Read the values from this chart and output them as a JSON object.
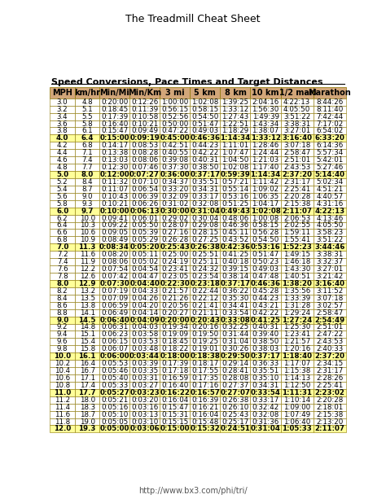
{
  "title": "The Treadmill Cheat Sheet",
  "subtitle": "Speed Conversions, Pace Times and Target Distances",
  "url": "http://www.bx3.com/phi/tri/",
  "headers": [
    "MPH",
    "km/hr",
    "Min/Mi",
    "Min/Km",
    "3 mi",
    "5 km",
    "8 km",
    "10 km",
    "1/2 mar.",
    "Marathon"
  ],
  "rows": [
    [
      "3.0",
      "4.8",
      "0:20:00",
      "0:12:26",
      "1:00:00",
      "1:02:08",
      "1:39:25",
      "2:04:16",
      "4:22:13",
      "8:44:26"
    ],
    [
      "3.2",
      "5.1",
      "0:18:45",
      "0:11:39",
      "0:56:15",
      "0:58:15",
      "1:33:12",
      "1:56:30",
      "4:05:50",
      "8:11:40"
    ],
    [
      "3.4",
      "5.5",
      "0:17:39",
      "0:10:58",
      "0:52:56",
      "0:54:50",
      "1:27:43",
      "1:49:39",
      "3:51:22",
      "7:42:44"
    ],
    [
      "3.6",
      "5.8",
      "0:16:40",
      "0:10:21",
      "0:50:00",
      "0:51:47",
      "1:22:51",
      "1:43:34",
      "3:38:31",
      "7:17:02"
    ],
    [
      "3.8",
      "6.1",
      "0:15:47",
      "0:09:49",
      "0:47:22",
      "0:49:03",
      "1:18:29",
      "1:38:07",
      "3:27:01",
      "6:54:02"
    ],
    [
      "4.0",
      "6.4",
      "0:15:00",
      "0:09:19",
      "0:45:00",
      "0:46:36",
      "1:14:34",
      "1:33:12",
      "3:16:40",
      "6:33:20"
    ],
    [
      "4.2",
      "6.8",
      "0:14:17",
      "0:08:53",
      "0:42:51",
      "0:44:23",
      "1:11:01",
      "1:28:46",
      "3:07:18",
      "6:14:36"
    ],
    [
      "4.4",
      "7.1",
      "0:13:38",
      "0:08:28",
      "0:40:55",
      "0:42:22",
      "1:07:47",
      "1:24:44",
      "2:58:47",
      "5:57:34"
    ],
    [
      "4.6",
      "7.4",
      "0:13:03",
      "0:08:06",
      "0:39:08",
      "0:40:31",
      "1:04:50",
      "1:21:03",
      "2:51:01",
      "5:42:01"
    ],
    [
      "4.8",
      "7.7",
      "0:12:30",
      "0:07:46",
      "0:37:30",
      "0:38:50",
      "1:02:08",
      "1:17:40",
      "2:43:53",
      "5:27:46"
    ],
    [
      "5.0",
      "8.0",
      "0:12:00",
      "0:07:27",
      "0:36:00",
      "0:37:17",
      "0:59:39",
      "1:14:34",
      "2:37:20",
      "5:14:40"
    ],
    [
      "5.2",
      "8.4",
      "0:11:32",
      "0:07:10",
      "0:34:37",
      "0:35:51",
      "0:57:21",
      "1:11:42",
      "2:31:17",
      "5:02:34"
    ],
    [
      "5.4",
      "8.7",
      "0:11:07",
      "0:06:54",
      "0:33:20",
      "0:34:31",
      "0:55:14",
      "1:09:02",
      "2:25:41",
      "4:51:21"
    ],
    [
      "5.6",
      "9.0",
      "0:10:43",
      "0:06:39",
      "0:32:09",
      "0:33:17",
      "0:53:16",
      "1:06:35",
      "2:20:28",
      "4:40:57"
    ],
    [
      "5.8",
      "9.3",
      "0:10:21",
      "0:06:26",
      "0:31:02",
      "0:32:08",
      "0:51:25",
      "1:04:17",
      "2:15:38",
      "4:31:16"
    ],
    [
      "6.0",
      "9.7",
      "0:10:00",
      "0:06:13",
      "0:30:00",
      "0:31:04",
      "0:49:43",
      "1:02:08",
      "2:11:07",
      "4:22:13"
    ],
    [
      "6.2",
      "10.0",
      "0:09:41",
      "0:06:01",
      "0:29:02",
      "0:30:04",
      "0:48:06",
      "1:00:08",
      "2:06:53",
      "4:13:46"
    ],
    [
      "6.4",
      "10.3",
      "0:09:22",
      "0:05:50",
      "0:28:07",
      "0:29:08",
      "0:46:36",
      "0:58:15",
      "2:02:55",
      "4:05:50"
    ],
    [
      "6.6",
      "10.6",
      "0:09:05",
      "0:05:39",
      "0:27:16",
      "0:28:15",
      "0:45:11",
      "0:56:28",
      "1:59:11",
      "3:58:23"
    ],
    [
      "6.8",
      "10.9",
      "0:08:49",
      "0:05:29",
      "0:26:28",
      "0:27:25",
      "0:43:52",
      "0:54:50",
      "1:55:41",
      "3:51:22"
    ],
    [
      "7.0",
      "11.3",
      "0:08:34",
      "0:05:20",
      "0:25:43",
      "0:26:38",
      "0:42:36",
      "0:53:16",
      "1:52:23",
      "3:44:46"
    ],
    [
      "7.2",
      "11.6",
      "0:08:20",
      "0:05:11",
      "0:25:00",
      "0:25:51",
      "0:41:25",
      "0:51:47",
      "1:49:15",
      "3:38:31"
    ],
    [
      "7.4",
      "11.9",
      "0:08:06",
      "0:05:02",
      "0:24:19",
      "0:25:11",
      "0:40:18",
      "0:50:23",
      "1:46:18",
      "3:32:37"
    ],
    [
      "7.6",
      "12.2",
      "0:07:54",
      "0:04:54",
      "0:23:41",
      "0:24:32",
      "0:39:15",
      "0:49:03",
      "1:43:30",
      "3:27:01"
    ],
    [
      "7.8",
      "12.6",
      "0:07:42",
      "0:04:47",
      "0:23:05",
      "0:23:54",
      "0:38:14",
      "0:47:48",
      "1:40:51",
      "3:21:42"
    ],
    [
      "8.0",
      "12.9",
      "0:07:30",
      "0:04:40",
      "0:22:30",
      "0:23:18",
      "0:37:17",
      "0:46:36",
      "1:38:20",
      "3:16:40"
    ],
    [
      "8.2",
      "13.2",
      "0:07:19",
      "0:04:33",
      "0:21:57",
      "0:22:44",
      "0:36:22",
      "0:45:28",
      "1:35:56",
      "3:11:52"
    ],
    [
      "8.4",
      "13.5",
      "0:07:09",
      "0:04:26",
      "0:21:26",
      "0:22:12",
      "0:35:30",
      "0:44:23",
      "1:33:39",
      "3:07:18"
    ],
    [
      "8.6",
      "13.8",
      "0:06:59",
      "0:04:20",
      "0:20:56",
      "0:21:41",
      "0:34:41",
      "0:43:21",
      "1:31:28",
      "3:02:57"
    ],
    [
      "8.8",
      "14.1",
      "0:06:49",
      "0:04:14",
      "0:20:27",
      "0:21:11",
      "0:33:54",
      "0:42:22",
      "1:29:24",
      "2:58:47"
    ],
    [
      "9.0",
      "14.5",
      "0:06:40",
      "0:04:09",
      "0:20:00",
      "0:20:43",
      "0:33:08",
      "0:41:25",
      "1:27:24",
      "2:54:49"
    ],
    [
      "9.2",
      "14.8",
      "0:06:31",
      "0:04:03",
      "0:19:34",
      "0:20:16",
      "0:32:25",
      "0:40:31",
      "1:25:30",
      "2:51:01"
    ],
    [
      "9.4",
      "15.1",
      "0:06:23",
      "0:03:58",
      "0:19:09",
      "0:19:50",
      "0:31:44",
      "0:39:40",
      "1:23:41",
      "2:47:22"
    ],
    [
      "9.6",
      "15.4",
      "0:06:15",
      "0:03:53",
      "0:18:45",
      "0:19:25",
      "0:31:04",
      "0:38:50",
      "1:21:57",
      "2:43:53"
    ],
    [
      "9.8",
      "15.8",
      "0:06:07",
      "0:03:48",
      "0:18:22",
      "0:19:01",
      "0:30:26",
      "0:38:03",
      "1:20:16",
      "2:40:33"
    ],
    [
      "10.0",
      "16.1",
      "0:06:00",
      "0:03:44",
      "0:18:00",
      "0:18:38",
      "0:29:50",
      "0:37:17",
      "1:18:40",
      "2:37:20"
    ],
    [
      "10.2",
      "16.4",
      "0:05:53",
      "0:03:39",
      "0:17:39",
      "0:18:17",
      "0:29:14",
      "0:36:33",
      "1:17:07",
      "2:34:15"
    ],
    [
      "10.4",
      "16.7",
      "0:05:46",
      "0:03:35",
      "0:17:18",
      "0:17:55",
      "0:28:41",
      "0:35:51",
      "1:15:38",
      "2:31:17"
    ],
    [
      "10.6",
      "17.1",
      "0:05:40",
      "0:03:31",
      "0:16:59",
      "0:17:35",
      "0:28:08",
      "0:35:10",
      "1:14:13",
      "2:28:26"
    ],
    [
      "10.8",
      "17.4",
      "0:05:33",
      "0:03:27",
      "0:16:40",
      "0:17:16",
      "0:27:37",
      "0:34:31",
      "1:12:50",
      "2:25:41"
    ],
    [
      "11.0",
      "17.7",
      "0:05:27",
      "0:03:23",
      "0:16:22",
      "0:16:57",
      "0:27:07",
      "0:33:54",
      "1:11:31",
      "2:23:02"
    ],
    [
      "11.2",
      "18.0",
      "0:05:21",
      "0:03:20",
      "0:16:04",
      "0:16:39",
      "0:26:38",
      "0:33:17",
      "1:10:14",
      "2:20:28"
    ],
    [
      "11.4",
      "18.3",
      "0:05:16",
      "0:03:16",
      "0:15:47",
      "0:16:21",
      "0:26:10",
      "0:32:42",
      "1:09:00",
      "2:18:01"
    ],
    [
      "11.6",
      "18.7",
      "0:05:10",
      "0:03:13",
      "0:15:31",
      "0:16:04",
      "0:25:43",
      "0:32:08",
      "1:07:49",
      "2:15:38"
    ],
    [
      "11.8",
      "19.0",
      "0:05:05",
      "0:03:10",
      "0:15:15",
      "0:15:48",
      "0:25:17",
      "0:31:36",
      "1:06:40",
      "2:13:20"
    ],
    [
      "12.0",
      "19.3",
      "0:05:00",
      "0:03:06",
      "0:15:00",
      "0:15:32",
      "0:24:51",
      "0:31:04",
      "1:05:33",
      "2:11:07"
    ]
  ],
  "highlight_rows": [
    5,
    10,
    15,
    20,
    25,
    30,
    35,
    40,
    45
  ],
  "highlight_color": "#FFFF99",
  "header_bg": "#D2A679",
  "normal_row_bg": "#FFFFFF",
  "border_color": "#8B7500",
  "title_fontsize": 9,
  "subtitle_fontsize": 8,
  "table_fontsize": 6.2,
  "header_fontsize": 7.0,
  "url_fontsize": 7.0
}
